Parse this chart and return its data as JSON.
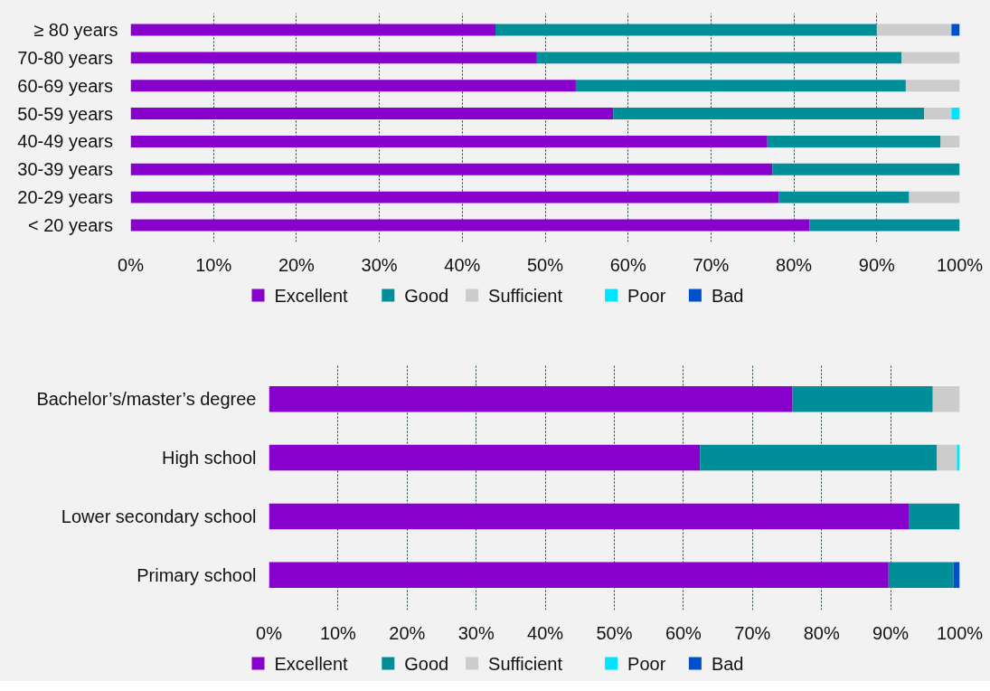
{
  "chart_data": [
    {
      "type": "bar",
      "orientation": "horizontal",
      "stacked": true,
      "categories": [
        "≥ 80 years",
        "70-80  years",
        "60-69  years",
        "50-59  years",
        "40-49  years",
        "30-39  years",
        "20-29  years",
        "< 20  years"
      ],
      "series": [
        {
          "name": "Excellent",
          "color": "#8800cc",
          "values": [
            44,
            49,
            53.7,
            58.2,
            76.8,
            77.4,
            78.2,
            81.9
          ]
        },
        {
          "name": "Good",
          "color": "#008f99",
          "values": [
            46,
            44,
            39.8,
            37.5,
            20.9,
            22.6,
            15.7,
            18.1
          ]
        },
        {
          "name": "Sufficient",
          "color": "#cccccc",
          "values": [
            9,
            7,
            6.5,
            3.3,
            2.3,
            null,
            6.1,
            null
          ]
        },
        {
          "name": "Poor",
          "color": "#00e5ff",
          "values": [
            null,
            null,
            null,
            1,
            null,
            null,
            null,
            null
          ]
        },
        {
          "name": "Bad",
          "color": "#0050cc",
          "values": [
            1,
            null,
            null,
            null,
            null,
            null,
            null,
            null
          ]
        }
      ],
      "xlim": [
        0,
        100
      ],
      "xticks": [
        {
          "value": 0,
          "label": "0%"
        },
        {
          "value": 10,
          "label": "10%"
        },
        {
          "value": 20,
          "label": "20%"
        },
        {
          "value": 30,
          "label": "30%"
        },
        {
          "value": 40,
          "label": "40%"
        },
        {
          "value": 50,
          "label": "50%"
        },
        {
          "value": 60,
          "label": "60%"
        },
        {
          "value": 70,
          "label": "70%"
        },
        {
          "value": 80,
          "label": "80%"
        },
        {
          "value": 90,
          "label": "90%"
        },
        {
          "value": 100,
          "label": "100%"
        }
      ],
      "grid": "x",
      "legend": "bottom"
    },
    {
      "type": "bar",
      "orientation": "horizontal",
      "stacked": true,
      "categories": [
        "Bachelor’s/master’s degree",
        "High school",
        "Lower secondary school",
        "Primary school"
      ],
      "series": [
        {
          "name": "Excellent",
          "color": "#8800cc",
          "values": [
            75.8,
            62.4,
            92.7,
            89.7
          ]
        },
        {
          "name": "Good",
          "color": "#008f99",
          "values": [
            20.3,
            34.3,
            7.3,
            9.4
          ]
        },
        {
          "name": "Sufficient",
          "color": "#cccccc",
          "values": [
            3.9,
            2.9,
            null,
            null
          ]
        },
        {
          "name": "Poor",
          "color": "#00e5ff",
          "values": [
            null,
            0.4,
            null,
            null
          ]
        },
        {
          "name": "Bad",
          "color": "#0050cc",
          "values": [
            null,
            null,
            null,
            0.9
          ]
        }
      ],
      "xlim": [
        0,
        100
      ],
      "xticks": [
        {
          "value": 0,
          "label": "0%"
        },
        {
          "value": 10,
          "label": "10%"
        },
        {
          "value": 20,
          "label": "20%"
        },
        {
          "value": 30,
          "label": "30%"
        },
        {
          "value": 40,
          "label": "40%"
        },
        {
          "value": 50,
          "label": "50%"
        },
        {
          "value": 60,
          "label": "60%"
        },
        {
          "value": 70,
          "label": "70%"
        },
        {
          "value": 80,
          "label": "80%"
        },
        {
          "value": 90,
          "label": "90%"
        },
        {
          "value": 100,
          "label": "100%"
        }
      ],
      "grid": "x",
      "legend": "bottom"
    }
  ]
}
